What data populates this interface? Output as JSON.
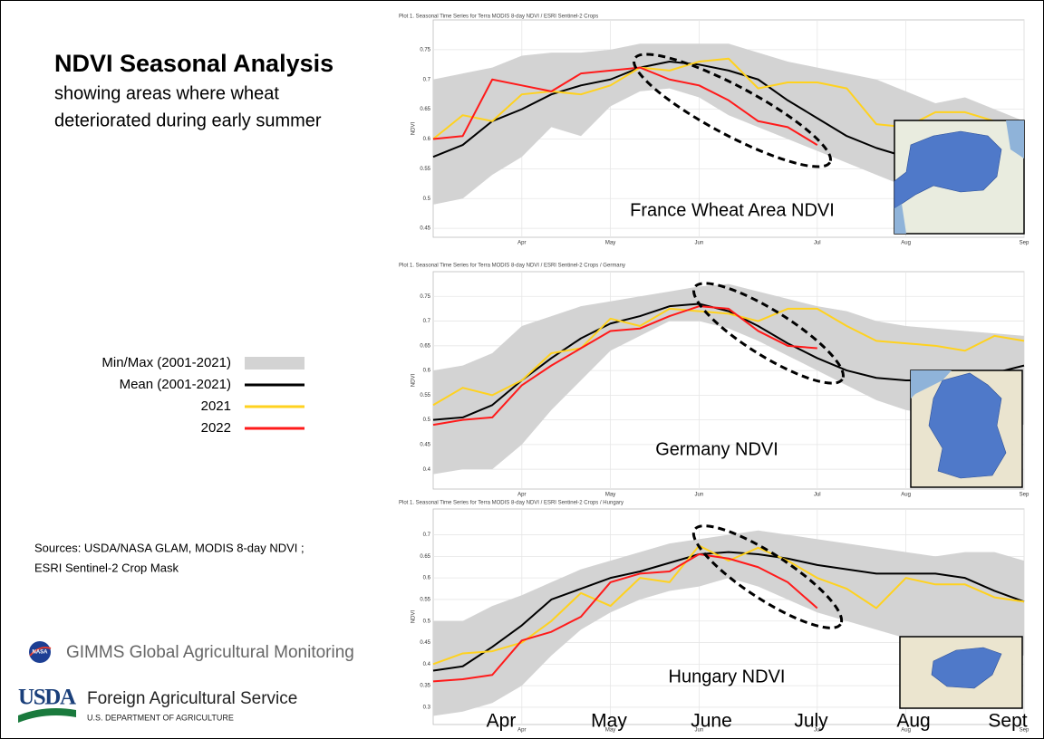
{
  "slide": {
    "title": "NDVI Seasonal Analysis",
    "subtitle_lines": [
      "showing areas where wheat",
      "deteriorated during early summer"
    ],
    "sources": [
      "Sources:  USDA/NASA GLAM, MODIS 8-day NDVI ;",
      "ESRI Sentinel-2 Crop Mask"
    ],
    "nasa_logo": "NASA",
    "gimms": "GIMMS Global Agricultural Monitoring",
    "usda_logo": "USDA",
    "fas": "Foreign Agricultural Service",
    "department": "U.S. DEPARTMENT OF AGRICULTURE",
    "month_labels": [
      "Apr",
      "May",
      "June",
      "July",
      "Aug",
      "Sept"
    ]
  },
  "chart_data": [
    {
      "type": "line",
      "plot_title": "Plot 1. Seasonal Time Series for Terra MODIS 8-day NDVI / ESRI Sentinel-2 Crops",
      "annotation": "France Wheat Area NDVI",
      "y_label": "NDVI",
      "categories": [
        null,
        null,
        null,
        "Apr",
        null,
        null,
        "May",
        null,
        null,
        "Jun",
        null,
        null,
        null,
        "Jul",
        null,
        null,
        "Aug",
        null,
        null,
        null,
        "Sep"
      ],
      "ylim": [
        0.435,
        0.8
      ],
      "yticks": [
        0.45,
        0.5,
        0.55,
        0.6,
        0.65,
        0.7,
        0.75
      ],
      "grid": true,
      "series": [
        {
          "name": "Min/Max (2001-2021)",
          "color": "#d3d3d3",
          "max": [
            0.7,
            0.71,
            0.72,
            0.74,
            0.745,
            0.745,
            0.75,
            0.76,
            0.76,
            0.76,
            0.76,
            0.745,
            0.73,
            0.72,
            0.71,
            0.7,
            0.68,
            0.66,
            0.67,
            0.65,
            0.63
          ],
          "min": [
            0.49,
            0.5,
            0.54,
            0.57,
            0.62,
            0.605,
            0.655,
            0.68,
            0.685,
            0.67,
            0.64,
            0.62,
            0.6,
            0.58,
            0.56,
            0.54,
            0.52,
            0.5,
            0.5,
            0.49,
            0.48
          ]
        },
        {
          "name": "Mean (2001-2021)",
          "color": "#000000",
          "values": [
            0.57,
            0.59,
            0.63,
            0.65,
            0.675,
            0.69,
            0.7,
            0.72,
            0.73,
            0.725,
            0.715,
            0.7,
            0.665,
            0.635,
            0.605,
            0.585,
            0.57,
            0.565,
            0.56,
            0.55,
            0.54
          ]
        },
        {
          "name": "2021",
          "color": "#ffd21f",
          "values": [
            0.6,
            0.64,
            0.63,
            0.675,
            0.68,
            0.675,
            0.69,
            0.72,
            0.715,
            0.73,
            0.735,
            0.685,
            0.695,
            0.695,
            0.685,
            0.625,
            0.62,
            0.645,
            0.645,
            0.63,
            null
          ]
        },
        {
          "name": "2022",
          "color": "#ff1a1a",
          "values": [
            0.6,
            0.605,
            0.7,
            0.69,
            0.68,
            0.71,
            0.715,
            0.72,
            0.7,
            0.69,
            0.665,
            0.63,
            0.62,
            0.59,
            null,
            null,
            null,
            null,
            null,
            null,
            null
          ]
        }
      ]
    },
    {
      "type": "line",
      "plot_title": "Plot 1. Seasonal Time Series for Terra MODIS 8-day NDVI / ESRI Sentinel-2 Crops / Germany",
      "annotation": "Germany NDVI",
      "y_label": "NDVI",
      "categories": [
        null,
        null,
        null,
        "Apr",
        null,
        null,
        "May",
        null,
        null,
        "Jun",
        null,
        null,
        null,
        "Jul",
        null,
        null,
        "Aug",
        null,
        null,
        null,
        "Sep"
      ],
      "ylim": [
        0.36,
        0.8
      ],
      "yticks": [
        0.4,
        0.45,
        0.5,
        0.55,
        0.6,
        0.65,
        0.7,
        0.75
      ],
      "grid": true,
      "series": [
        {
          "color": "#d3d3d3",
          "max": [
            0.6,
            0.61,
            0.635,
            0.69,
            0.71,
            0.73,
            0.74,
            0.75,
            0.76,
            0.77,
            0.775,
            0.76,
            0.745,
            0.73,
            0.72,
            0.7,
            0.69,
            0.685,
            0.68,
            0.675,
            0.67
          ],
          "min": [
            0.39,
            0.4,
            0.4,
            0.45,
            0.52,
            0.58,
            0.64,
            0.67,
            0.7,
            0.7,
            0.685,
            0.66,
            0.63,
            0.6,
            0.57,
            0.54,
            0.52,
            0.51,
            0.5,
            0.5,
            0.49
          ]
        },
        {
          "color": "#000000",
          "values": [
            0.5,
            0.505,
            0.53,
            0.58,
            0.625,
            0.665,
            0.695,
            0.71,
            0.73,
            0.735,
            0.72,
            0.69,
            0.655,
            0.625,
            0.6,
            0.585,
            0.58,
            0.58,
            0.585,
            0.595,
            0.61
          ]
        },
        {
          "color": "#ffd21f",
          "values": [
            0.53,
            0.565,
            0.55,
            0.58,
            0.635,
            0.645,
            0.705,
            0.69,
            0.725,
            0.72,
            0.715,
            0.7,
            0.725,
            0.725,
            0.69,
            0.66,
            0.655,
            0.65,
            0.64,
            0.67,
            0.66
          ]
        },
        {
          "color": "#ff1a1a",
          "values": [
            0.49,
            0.5,
            0.505,
            0.57,
            0.61,
            0.645,
            0.68,
            0.685,
            0.71,
            0.73,
            0.725,
            0.68,
            0.65,
            0.645,
            null,
            null,
            null,
            null,
            null,
            null,
            null
          ]
        }
      ]
    },
    {
      "type": "line",
      "plot_title": "Plot 1. Seasonal Time Series for Terra MODIS 8-day NDVI / ESRI Sentinel-2 Crops / Hungary",
      "annotation": "Hungary NDVI",
      "y_label": "NDVI",
      "categories": [
        null,
        null,
        null,
        "Apr",
        null,
        null,
        "May",
        null,
        null,
        "Jun",
        null,
        null,
        null,
        "Jul",
        null,
        null,
        "Aug",
        null,
        null,
        null,
        "Sep"
      ],
      "ylim": [
        0.26,
        0.76
      ],
      "yticks": [
        0.3,
        0.35,
        0.4,
        0.45,
        0.5,
        0.55,
        0.6,
        0.65,
        0.7
      ],
      "grid": true,
      "series": [
        {
          "color": "#d3d3d3",
          "max": [
            0.5,
            0.5,
            0.535,
            0.56,
            0.59,
            0.62,
            0.64,
            0.66,
            0.68,
            0.69,
            0.7,
            0.71,
            0.7,
            0.69,
            0.68,
            0.67,
            0.66,
            0.65,
            0.66,
            0.66,
            0.64
          ],
          "min": [
            0.28,
            0.29,
            0.31,
            0.35,
            0.42,
            0.48,
            0.52,
            0.55,
            0.57,
            0.58,
            0.6,
            0.58,
            0.55,
            0.52,
            0.5,
            0.48,
            0.46,
            0.45,
            0.44,
            0.43,
            0.42
          ]
        },
        {
          "color": "#000000",
          "values": [
            0.385,
            0.395,
            0.44,
            0.49,
            0.55,
            0.575,
            0.6,
            0.615,
            0.635,
            0.655,
            0.66,
            0.655,
            0.645,
            0.63,
            0.62,
            0.61,
            0.61,
            0.61,
            0.6,
            0.57,
            0.545
          ]
        },
        {
          "color": "#ffd21f",
          "values": [
            0.4,
            0.425,
            0.43,
            0.45,
            0.5,
            0.565,
            0.535,
            0.6,
            0.59,
            0.675,
            0.64,
            0.67,
            0.64,
            0.6,
            0.575,
            0.53,
            0.6,
            0.585,
            0.585,
            0.555,
            0.545
          ]
        },
        {
          "color": "#ff1a1a",
          "values": [
            0.36,
            0.365,
            0.375,
            0.455,
            0.475,
            0.51,
            0.59,
            0.61,
            0.615,
            0.655,
            0.645,
            0.625,
            0.59,
            0.53,
            null,
            null,
            null,
            null,
            null,
            null,
            null
          ]
        }
      ]
    }
  ]
}
